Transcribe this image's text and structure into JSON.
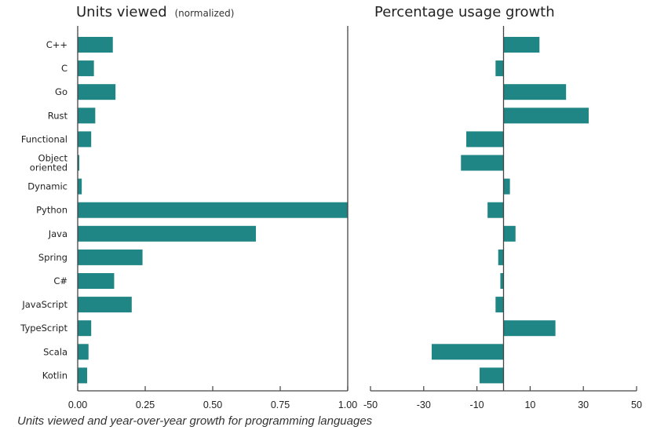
{
  "caption": "Units viewed and year-over-year growth for programming languages",
  "colors": {
    "bar": "#1f8585",
    "axis": "#444444"
  },
  "chart_data": [
    {
      "type": "bar",
      "orientation": "horizontal",
      "title": "Units viewed",
      "title_suffix": "(normalized)",
      "xlabel": "",
      "ylabel": "",
      "xlim": [
        0,
        1
      ],
      "xticks": [
        "0.00",
        "0.25",
        "0.50",
        "0.75",
        "1.00"
      ],
      "xtick_values": [
        0,
        0.25,
        0.5,
        0.75,
        1
      ],
      "grid": false,
      "categories": [
        "C++",
        "C",
        "Go",
        "Rust",
        "Functional",
        "Object oriented",
        "Dynamic",
        "Python",
        "Java",
        "Spring",
        "C#",
        "JavaScript",
        "TypeScript",
        "Scala",
        "Kotlin"
      ],
      "values": [
        0.13,
        0.06,
        0.14,
        0.065,
        0.05,
        0.006,
        0.015,
        1.0,
        0.66,
        0.24,
        0.135,
        0.2,
        0.05,
        0.04,
        0.035
      ]
    },
    {
      "type": "bar",
      "orientation": "horizontal",
      "title": "Percentage usage growth",
      "xlabel": "",
      "ylabel": "",
      "xlim": [
        -50,
        50
      ],
      "xticks": [
        "-50",
        "-30",
        "-10",
        "10",
        "30",
        "50"
      ],
      "xtick_values": [
        -50,
        -30,
        -10,
        10,
        30,
        50
      ],
      "grid": false,
      "categories": [
        "C++",
        "C",
        "Go",
        "Rust",
        "Functional",
        "Object oriented",
        "Dynamic",
        "Python",
        "Java",
        "Spring",
        "C#",
        "JavaScript",
        "TypeScript",
        "Scala",
        "Kotlin"
      ],
      "values": [
        13.5,
        -3,
        23.5,
        32,
        -14,
        -16,
        2.4,
        -6,
        4.5,
        -2,
        -1.2,
        -3,
        19.5,
        -27,
        -9
      ]
    }
  ]
}
